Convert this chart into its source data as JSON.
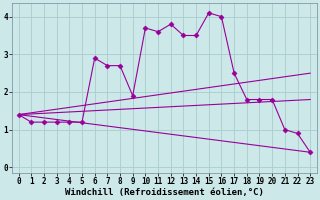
{
  "xlabel": "Windchill (Refroidissement éolien,°C)",
  "background_color": "#cce8e8",
  "grid_color": "#aacccc",
  "line_color": "#990099",
  "xlim": [
    -0.5,
    23.5
  ],
  "ylim": [
    -0.15,
    4.35
  ],
  "xticks": [
    0,
    1,
    2,
    3,
    4,
    5,
    6,
    7,
    8,
    9,
    10,
    11,
    12,
    13,
    14,
    15,
    16,
    17,
    18,
    19,
    20,
    21,
    22,
    23
  ],
  "yticks": [
    0,
    1,
    2,
    3,
    4
  ],
  "line1_x": [
    0,
    1,
    2,
    3,
    4,
    5,
    6,
    7,
    8,
    9,
    10,
    11,
    12,
    13,
    14,
    15,
    16,
    17,
    18,
    19,
    20,
    21,
    22,
    23
  ],
  "line1_y": [
    1.4,
    1.2,
    1.2,
    1.2,
    1.2,
    1.2,
    2.9,
    2.7,
    2.7,
    1.9,
    3.7,
    3.6,
    3.8,
    3.5,
    3.5,
    4.1,
    4.0,
    2.5,
    1.8,
    1.8,
    1.8,
    1.0,
    0.9,
    0.4
  ],
  "line2_x": [
    0,
    23
  ],
  "line2_y": [
    1.4,
    2.5
  ],
  "line3_x": [
    0,
    23
  ],
  "line3_y": [
    1.4,
    1.8
  ],
  "line4_x": [
    0,
    23
  ],
  "line4_y": [
    1.4,
    0.4
  ],
  "marker": "D",
  "markersize": 2.5,
  "linewidth": 0.8,
  "xlabel_fontsize": 6.5,
  "tick_fontsize": 5.5
}
